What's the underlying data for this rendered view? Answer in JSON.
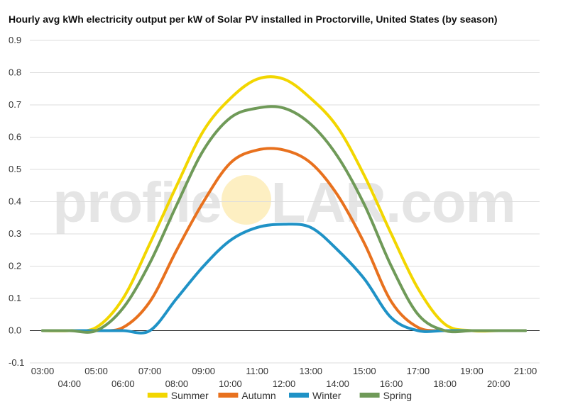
{
  "title": "Hourly avg kWh electricity output per kW of Solar PV installed in Proctorville, United States (by season)",
  "watermark": {
    "pre": "profile",
    "post": "LAR.com"
  },
  "chart_data": {
    "type": "line",
    "title": "Hourly avg kWh electricity output per kW of Solar PV installed in Proctorville, United States (by season)",
    "xlabel": "",
    "ylabel": "",
    "ylim": [
      -0.1,
      0.9
    ],
    "yticks": [
      "-0.1",
      "0.0",
      "0.1",
      "0.2",
      "0.3",
      "0.4",
      "0.5",
      "0.6",
      "0.7",
      "0.8",
      "0.9"
    ],
    "grid": true,
    "legend": "bottom",
    "categories": [
      "03:00",
      "04:00",
      "05:00",
      "06:00",
      "07:00",
      "08:00",
      "09:00",
      "10:00",
      "11:00",
      "12:00",
      "13:00",
      "14:00",
      "15:00",
      "16:00",
      "17:00",
      "18:00",
      "19:00",
      "20:00",
      "21:00"
    ],
    "series": [
      {
        "name": "Summer",
        "color": "#f2d600",
        "values": [
          0,
          0,
          0.01,
          0.1,
          0.27,
          0.45,
          0.62,
          0.72,
          0.78,
          0.78,
          0.72,
          0.63,
          0.48,
          0.3,
          0.13,
          0.02,
          0,
          0,
          0
        ]
      },
      {
        "name": "Autumn",
        "color": "#e8711e",
        "values": [
          0,
          0,
          0,
          0.01,
          0.09,
          0.25,
          0.4,
          0.52,
          0.56,
          0.56,
          0.52,
          0.42,
          0.27,
          0.09,
          0.01,
          0,
          0,
          0,
          0
        ]
      },
      {
        "name": "Winter",
        "color": "#1f92c6",
        "values": [
          0,
          0,
          0,
          0,
          0,
          0.1,
          0.2,
          0.28,
          0.32,
          0.33,
          0.32,
          0.25,
          0.16,
          0.04,
          0,
          0,
          0,
          0,
          0
        ]
      },
      {
        "name": "Spring",
        "color": "#6f9a58",
        "values": [
          0,
          0,
          0,
          0.07,
          0.21,
          0.39,
          0.56,
          0.66,
          0.69,
          0.69,
          0.64,
          0.54,
          0.39,
          0.2,
          0.05,
          0,
          0,
          0,
          0
        ]
      }
    ]
  }
}
